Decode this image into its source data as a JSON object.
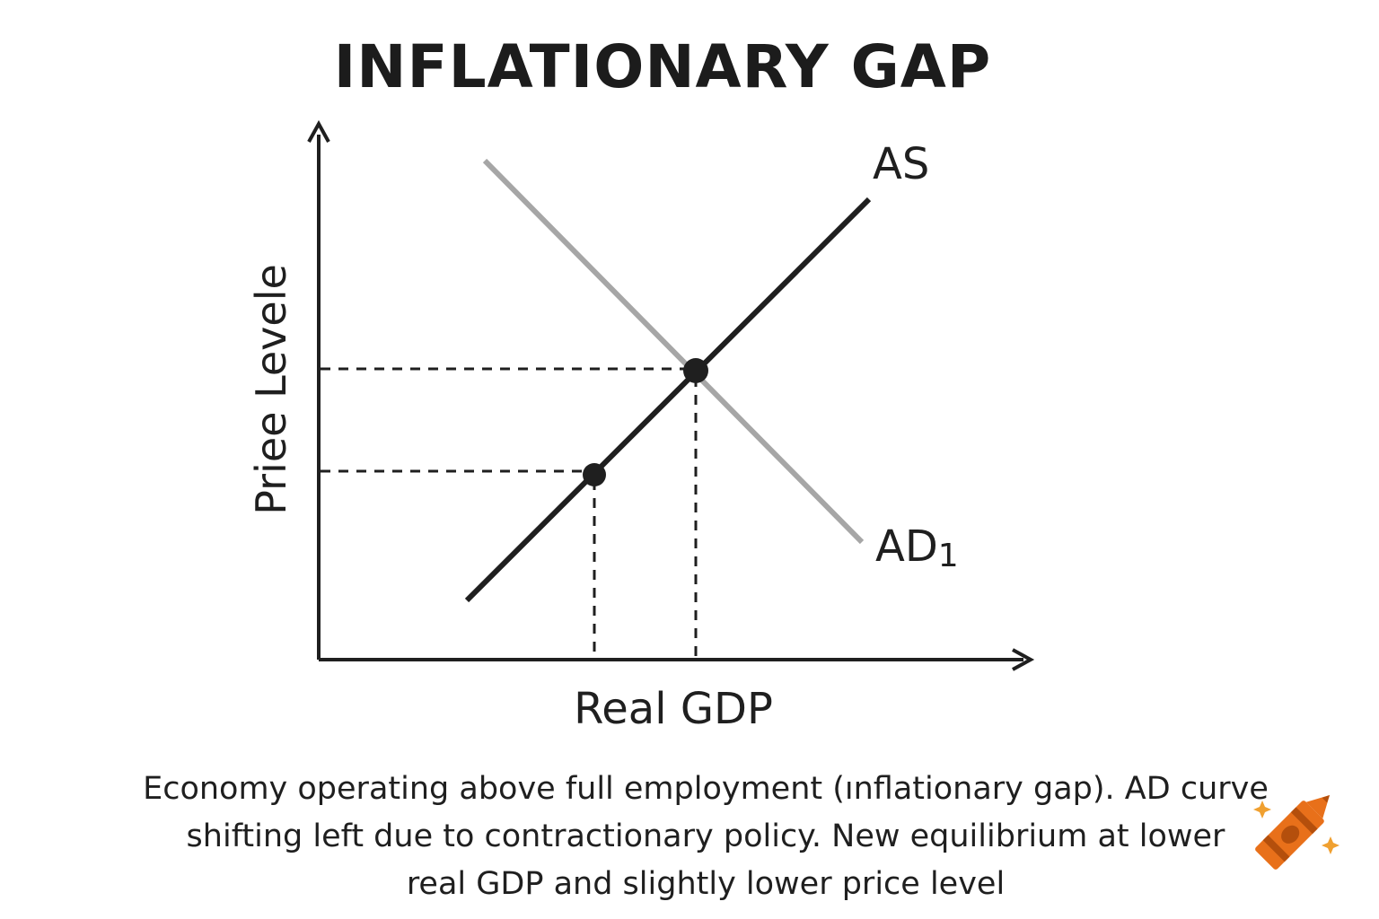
{
  "title": "INFLATIONARY GAP",
  "diagram": {
    "y_axis_label": "Priee Levele",
    "x_axis_label": "Real GDP",
    "curves": [
      {
        "label": "AS",
        "color": "#1f1f1f"
      },
      {
        "label": "AD",
        "subscript": "1",
        "color": "#a6a6a6"
      }
    ],
    "equilibrium_points": [
      {
        "name": "original-equilibrium"
      },
      {
        "name": "new-equilibrium"
      }
    ]
  },
  "caption": {
    "line1": "Economy operating above full employment (ınflationary gap). AD curve",
    "line2": "shifting left due to contractionary policy. New equilibrium at lower",
    "line3": "real GDP and slightly lower price level"
  },
  "colors": {
    "text": "#1f1f1f",
    "as_curve": "#1f1f1f",
    "ad_curve": "#a6a6a6",
    "crayon": "#e8701a"
  },
  "icons": {
    "logo": "crayon-icon"
  }
}
